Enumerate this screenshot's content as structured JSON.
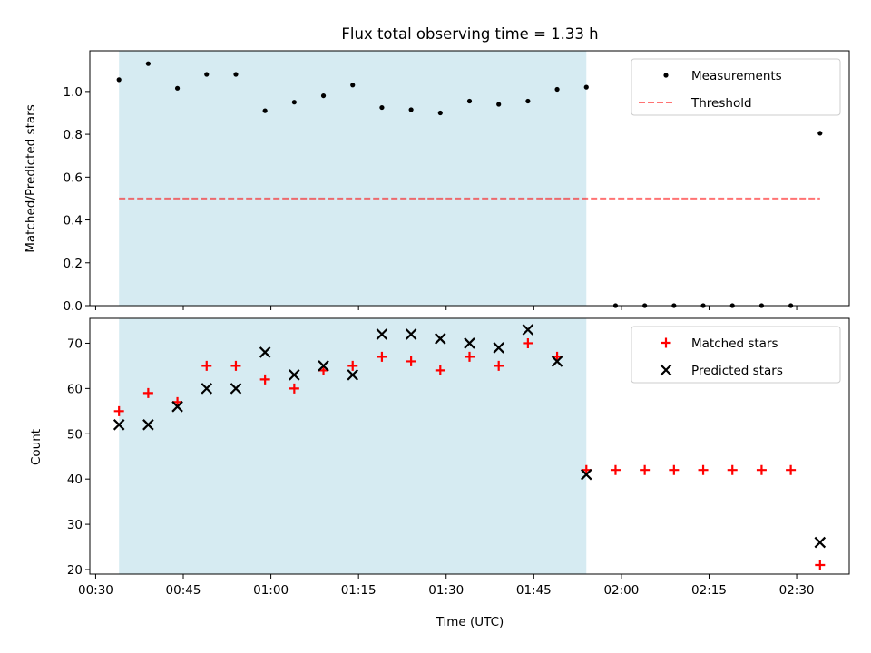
{
  "title": "Flux total observing time = 1.33 h",
  "colors": {
    "shade": "#add8e6",
    "measurement": "#000000",
    "threshold": "#ff0000",
    "matched": "#ff0000",
    "predicted": "#000000"
  },
  "chart_data": [
    {
      "type": "scatter",
      "ylabel": "Matched/Predicted stars",
      "ylim": [
        0,
        1.19
      ],
      "yticks": [
        "0.0",
        "0.2",
        "0.4",
        "0.6",
        "0.8",
        "1.0"
      ],
      "shaded_span": [
        "00:34",
        "01:54"
      ],
      "legend": "top-right",
      "series": [
        {
          "name": "Measurements",
          "marker": "dot",
          "points": [
            [
              "00:34",
              1.055
            ],
            [
              "00:39",
              1.13
            ],
            [
              "00:44",
              1.015
            ],
            [
              "00:49",
              1.08
            ],
            [
              "00:54",
              1.08
            ],
            [
              "00:59",
              0.91
            ],
            [
              "01:04",
              0.95
            ],
            [
              "01:09",
              0.98
            ],
            [
              "01:14",
              1.03
            ],
            [
              "01:19",
              0.925
            ],
            [
              "01:24",
              0.915
            ],
            [
              "01:29",
              0.9
            ],
            [
              "01:34",
              0.955
            ],
            [
              "01:39",
              0.94
            ],
            [
              "01:44",
              0.955
            ],
            [
              "01:49",
              1.01
            ],
            [
              "01:54",
              1.02
            ],
            [
              "01:59",
              0.0
            ],
            [
              "02:04",
              0.0
            ],
            [
              "02:09",
              0.0
            ],
            [
              "02:14",
              0.0
            ],
            [
              "02:19",
              0.0
            ],
            [
              "02:24",
              0.0
            ],
            [
              "02:29",
              0.0
            ],
            [
              "02:34",
              0.805
            ]
          ]
        },
        {
          "name": "Threshold",
          "marker": "dashed-line",
          "points": [
            [
              "00:34",
              0.5
            ],
            [
              "02:34",
              0.5
            ]
          ]
        }
      ]
    },
    {
      "type": "scatter",
      "xlabel": "Time (UTC)",
      "ylabel": "Count",
      "ylim": [
        19,
        75.5
      ],
      "yticks": [
        "20",
        "30",
        "40",
        "50",
        "60",
        "70"
      ],
      "xticks": [
        "00:30",
        "00:45",
        "01:00",
        "01:15",
        "01:30",
        "01:45",
        "02:00",
        "02:15",
        "02:30"
      ],
      "xlim": [
        "00:29",
        "02:39"
      ],
      "shaded_span": [
        "00:34",
        "01:54"
      ],
      "legend": "top-right",
      "series": [
        {
          "name": "Matched stars",
          "marker": "plus",
          "points": [
            [
              "00:34",
              55
            ],
            [
              "00:39",
              59
            ],
            [
              "00:44",
              57
            ],
            [
              "00:49",
              65
            ],
            [
              "00:54",
              65
            ],
            [
              "00:59",
              62
            ],
            [
              "01:04",
              60
            ],
            [
              "01:09",
              64
            ],
            [
              "01:14",
              65
            ],
            [
              "01:19",
              67
            ],
            [
              "01:24",
              66
            ],
            [
              "01:29",
              64
            ],
            [
              "01:34",
              67
            ],
            [
              "01:39",
              65
            ],
            [
              "01:44",
              70
            ],
            [
              "01:49",
              67
            ],
            [
              "01:54",
              42
            ],
            [
              "01:59",
              42
            ],
            [
              "02:04",
              42
            ],
            [
              "02:09",
              42
            ],
            [
              "02:14",
              42
            ],
            [
              "02:19",
              42
            ],
            [
              "02:24",
              42
            ],
            [
              "02:29",
              42
            ],
            [
              "02:34",
              21
            ]
          ]
        },
        {
          "name": "Predicted stars",
          "marker": "x",
          "points": [
            [
              "00:34",
              52
            ],
            [
              "00:39",
              52
            ],
            [
              "00:44",
              56
            ],
            [
              "00:49",
              60
            ],
            [
              "00:54",
              60
            ],
            [
              "00:59",
              68
            ],
            [
              "01:04",
              63
            ],
            [
              "01:09",
              65
            ],
            [
              "01:14",
              63
            ],
            [
              "01:19",
              72
            ],
            [
              "01:24",
              72
            ],
            [
              "01:29",
              71
            ],
            [
              "01:34",
              70
            ],
            [
              "01:39",
              69
            ],
            [
              "01:44",
              73
            ],
            [
              "01:49",
              66
            ],
            [
              "01:54",
              41
            ],
            [
              "02:34",
              26
            ]
          ]
        }
      ]
    }
  ]
}
